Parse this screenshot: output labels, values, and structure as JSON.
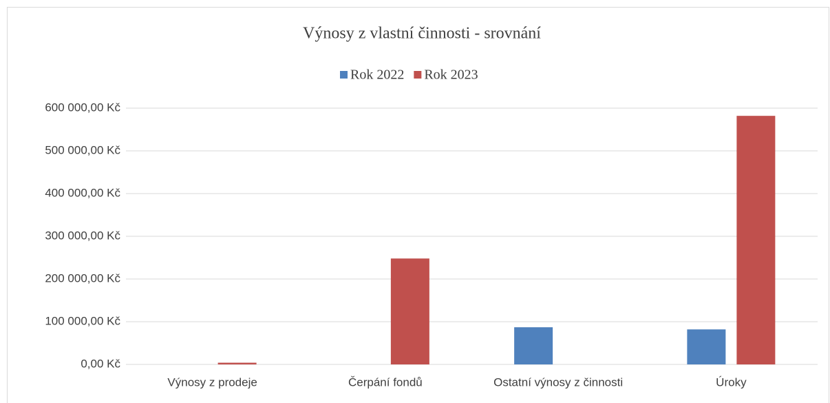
{
  "chart_data": {
    "type": "bar",
    "title": "Výnosy z vlastní činnosti - srovnání",
    "categories": [
      "Výnosy z prodeje",
      "Čerpání fondů",
      "Ostatní výnosy z činnosti",
      "Úroky"
    ],
    "series": [
      {
        "name": "Rok 2022",
        "color": "#4f81bd",
        "values": [
          0,
          0,
          87000,
          82000
        ]
      },
      {
        "name": "Rok 2023",
        "color": "#c0504d",
        "values": [
          4000,
          248000,
          0,
          582000
        ]
      }
    ],
    "ylim": [
      0,
      600000
    ],
    "yticks": [
      {
        "value": 0,
        "label": "0,00 Kč"
      },
      {
        "value": 100000,
        "label": "100 000,00 Kč"
      },
      {
        "value": 200000,
        "label": "200 000,00 Kč"
      },
      {
        "value": 300000,
        "label": "300 000,00 Kč"
      },
      {
        "value": 400000,
        "label": "400 000,00 Kč"
      },
      {
        "value": 500000,
        "label": "500 000,00 Kč"
      },
      {
        "value": 600000,
        "label": "600 000,00 Kč"
      }
    ],
    "grid": true,
    "legend": "top"
  }
}
